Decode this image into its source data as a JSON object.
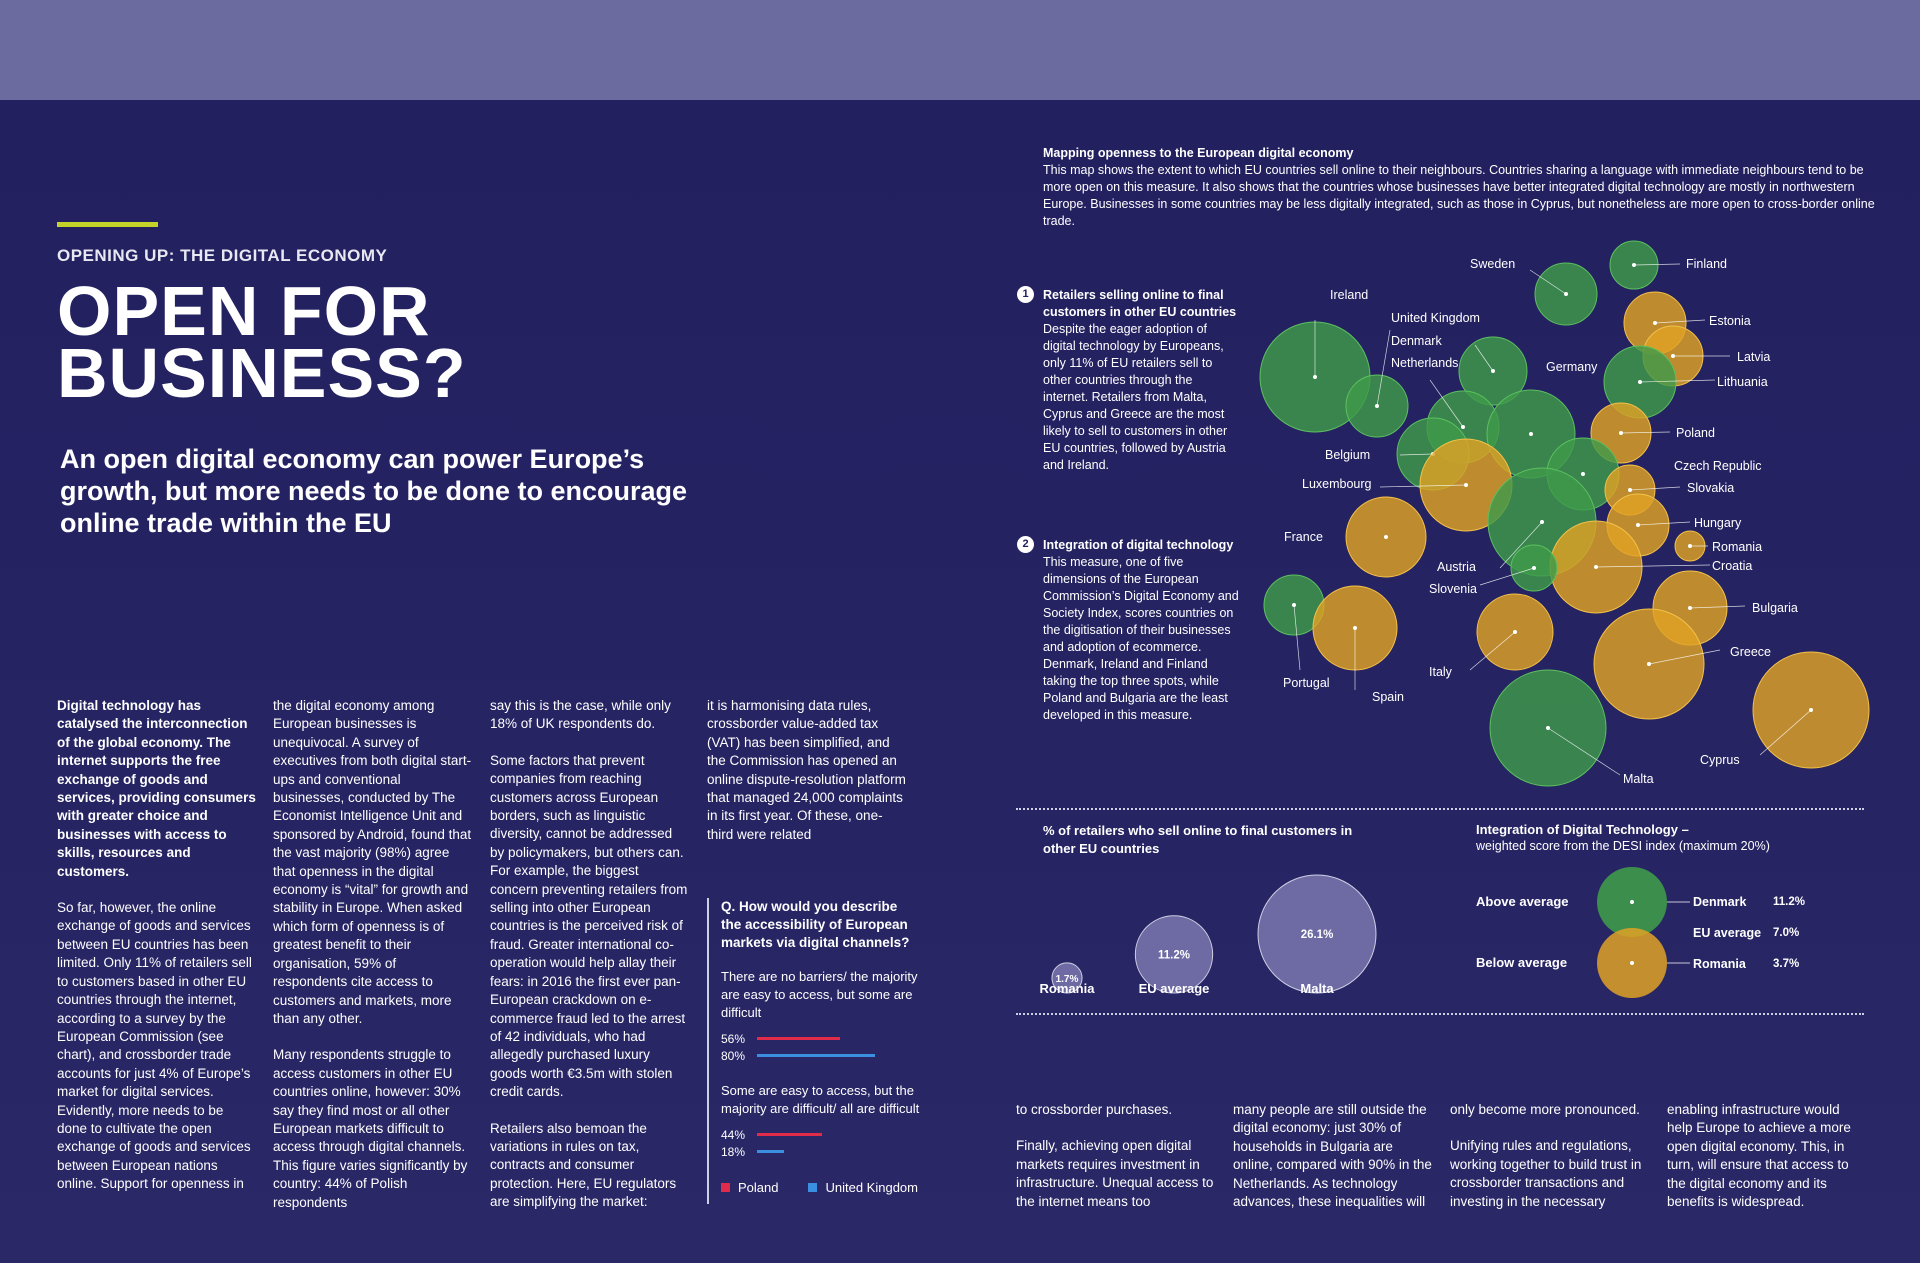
{
  "header": {
    "kicker": "OPENING UP: THE DIGITAL ECONOMY",
    "title_line1": "OPEN FOR",
    "title_line2": "BUSINESS?",
    "standfirst": "An open digital economy can power Europe’s growth, but more needs to be done to encourage online trade within the EU"
  },
  "colors": {
    "accent_rule": "#c4d32a",
    "poland": "#e02c4a",
    "uk": "#3a8fe0",
    "green": "#3f9a4a",
    "orange": "#e0a225"
  },
  "body": {
    "col1_lead": "Digital technology has catalysed the interconnection of the global economy. The internet supports the free exchange of goods and services, providing consumers with greater choice and businesses with access to skills, resources and customers.",
    "col1_p2": "So far, however, the online exchange of goods and services between EU countries has been limited. Only 11% of retailers sell to customers based in other EU countries through the internet, according to a survey by the European Commission (see chart), and crossborder trade accounts for just 4% of Europe’s market for digital services. Evidently, more needs to be done to cultivate the open exchange of goods and services between European nations online. Support for openness in",
    "col2_p1": "the digital economy among European businesses is unequivocal. A survey of executives from both digital start-ups and conventional businesses, conducted by The Economist Intelligence Unit and sponsored by Android, found that the vast majority (98%) agree that openness in the digital economy is “vital” for growth and stability in Europe. When asked which form of openness is of greatest benefit to their organisation, 59% of respondents cite access to customers and markets, more than any other.",
    "col2_p2": "Many respondents struggle to access customers in other EU countries online, however: 30% say they find most or all other European markets difficult to access through digital channels. This figure varies significantly by country: 44% of Polish respondents",
    "col3_p1": "say this is the case, while only 18% of UK respondents do.",
    "col3_p2": "Some factors that prevent companies from reaching customers across European borders, such as linguistic diversity, cannot be addressed by policymakers, but others can. For example, the biggest concern preventing retailers from selling into other European countries is the perceived risk of fraud. Greater international co-operation would help allay their fears: in 2016 the first ever pan-European crackdown on e-commerce fraud led to the arrest of 42 individuals, who had allegedly purchased luxury goods worth €3.5m with stolen credit cards.",
    "col3_p3": "Retailers also bemoan the variations in rules on tax, contracts and consumer protection. Here, EU regulators are simplifying the market:",
    "col4_p1": "it is harmonising data rules, crossborder value-added tax (VAT) has been simplified, and the Commission has opened an online dispute-resolution platform that managed 24,000 complaints in its first year. Of these, one-third were related",
    "bottom1": "to crossborder purchases.",
    "bottom1_p2": "Finally, achieving open digital markets requires investment in infrastructure. Unequal access to the internet means too",
    "bottom2": "many people are still outside the digital economy: just 30% of households in Bulgaria are online, compared with 90% in the Netherlands. As technology advances, these inequalities will",
    "bottom3": "only become more pronounced.",
    "bottom3_p2": "Unifying rules and regulations, working together to build trust in crossborder transactions and investing in the necessary",
    "bottom4": "enabling infrastructure would help Europe to achieve a more open digital economy. This, in turn, will ensure that access to the digital economy and its benefits is widespread."
  },
  "survey": {
    "question": "Q. How would you describe the accessibility of European markets via digital channels?",
    "groups": [
      {
        "label": "There are no barriers/ the majority are easy to access, but some are difficult",
        "poland": 56,
        "uk": 80,
        "poland_label": "56%",
        "uk_label": "80%"
      },
      {
        "label": "Some are easy to access, but the majority are difficult/ all are difficult",
        "poland": 44,
        "uk": 18,
        "poland_label": "44%",
        "uk_label": "18%"
      }
    ],
    "legend_poland": "Poland",
    "legend_uk": "United Kingdom"
  },
  "map": {
    "title": "Mapping openness to the European digital economy",
    "description": "This map shows the extent to which EU countries sell online to their neighbours. Countries sharing a language with immediate neighbours tend to be more open on this measure. It also shows that the countries whose businesses have better integrated digital technology are mostly in northwestern Europe. Businesses in some countries may be less digitally integrated, such as those in Cyprus, but nonetheless are more open to cross-border online trade.",
    "note1_num": "1",
    "note1_bold": "Retailers selling online to final customers in other EU countries",
    "note1_text": " Despite the eager adoption of digital technology by Europeans, only 11% of EU retailers sell to other countries through the internet. Retailers from Malta, Cyprus and Greece are the most likely to sell to customers in other EU countries, followed by Austria and Ireland.",
    "note2_num": "2",
    "note2_bold": "Integration of digital technology",
    "note2_text": "This measure, one of five dimensions of the European Commission’s Digital Economy and Society Index, scores countries on the digitisation of their businesses and adoption of ecommerce. Denmark, Ireland and Finland taking the top three spots, while Poland and Bulgaria are the least developed in this measure.",
    "countries": [
      "Sweden",
      "Finland",
      "Ireland",
      "United Kingdom",
      "Estonia",
      "Denmark",
      "Latvia",
      "Netherlands",
      "Germany",
      "Lithuania",
      "Poland",
      "Belgium",
      "Czech Republic",
      "Luxembourg",
      "Slovakia",
      "France",
      "Hungary",
      "Austria",
      "Romania",
      "Croatia",
      "Slovenia",
      "Bulgaria",
      "Portugal",
      "Italy",
      "Greece",
      "Spain",
      "Cyprus",
      "Malta"
    ]
  },
  "retail_chart": {
    "title": "% of retailers who sell online to final customers in other EU countries",
    "items": [
      {
        "label": "Romania",
        "value": 1.7,
        "value_label": "1.7%"
      },
      {
        "label": "EU average",
        "value": 11.2,
        "value_label": "11.2%"
      },
      {
        "label": "Malta",
        "value": 26.1,
        "value_label": "26.1%"
      }
    ]
  },
  "desi_chart": {
    "title": "Integration of Digital Technology –",
    "subtitle": "weighted score from the DESI index (maximum 20%)",
    "above": "Above average",
    "below": "Below average",
    "rows": [
      {
        "label": "Denmark",
        "value": "11.2%"
      },
      {
        "label": "EU average",
        "value": "7.0%"
      },
      {
        "label": "Romania",
        "value": "3.7%"
      }
    ]
  }
}
